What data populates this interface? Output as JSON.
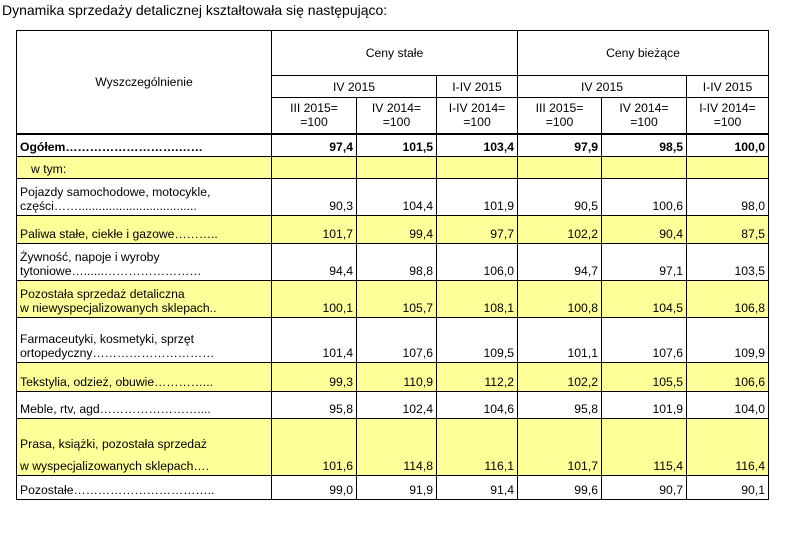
{
  "caption": "Dynamika sprzedaży detalicznej kształtowała się następująco:",
  "header": {
    "row_label": "Wyszczególnienie",
    "group_constant": "Ceny stałe",
    "group_current": "Ceny bieżące",
    "period_iv": "IV 2015",
    "period_i_iv": "I-IV 2015",
    "base_iii": [
      "III 2015=",
      "=100"
    ],
    "base_iv": [
      "IV 2014=",
      "=100"
    ],
    "base_i_iv": [
      "I-IV 2014=",
      "=100"
    ]
  },
  "rows": [
    {
      "label": [
        "Ogółem……………………….……"
      ],
      "values": [
        "97,4",
        "101,5",
        "103,4",
        "97,9",
        "98,5",
        "100,0"
      ],
      "shade": false,
      "bold": true
    },
    {
      "label": [
        "w tym:"
      ],
      "values": [
        "",
        "",
        "",
        "",
        "",
        ""
      ],
      "shade": true,
      "sub": true
    },
    {
      "label": [
        "Pojazdy samochodowe, motocykle,",
        "części……..................................."
      ],
      "values": [
        "90,3",
        "104,4",
        "101,9",
        "90,5",
        "100,6",
        "98,0"
      ],
      "shade": false
    },
    {
      "label": [
        "Paliwa stałe, ciekłe i gazowe……….."
      ],
      "values": [
        "101,7",
        "99,4",
        "97,7",
        "102,2",
        "90,4",
        "87,5"
      ],
      "shade": true
    },
    {
      "label": [
        "Żywność, napoje i wyroby",
        "tytoniowe…......……………………"
      ],
      "values": [
        "94,4",
        "98,8",
        "106,0",
        "94,7",
        "97,1",
        "103,5"
      ],
      "shade": false
    },
    {
      "label": [
        "Pozostała sprzedaż detaliczna",
        "w niewyspecjalizowanych sklepach.."
      ],
      "values": [
        "100,1",
        "105,7",
        "108,1",
        "100,8",
        "104,5",
        "106,8"
      ],
      "shade": true
    },
    {
      "label": [
        "Farmaceutyki, kosmetyki, sprzęt",
        "ortopedyczny…………………………"
      ],
      "values": [
        "101,4",
        "107,6",
        "109,5",
        "101,1",
        "107,6",
        "109,9"
      ],
      "shade": false
    },
    {
      "label": [
        "Tekstylia, odzież, obuwie…………..."
      ],
      "values": [
        "99,3",
        "110,9",
        "112,2",
        "102,2",
        "105,5",
        "106,6"
      ],
      "shade": true
    },
    {
      "label": [
        "Meble, rtv, agd……………………...."
      ],
      "values": [
        "95,8",
        "102,4",
        "104,6",
        "95,8",
        "101,9",
        "104,0"
      ],
      "shade": false
    },
    {
      "label": [
        "Prasa, książki, pozostała sprzedaż",
        "w wyspecjalizowanych sklepach…."
      ],
      "values": [
        "101,6",
        "114,8",
        "116,1",
        "101,7",
        "115,4",
        "116,4"
      ],
      "shade": true
    },
    {
      "label": [
        "Pozostałe…………………………….."
      ],
      "values": [
        "99,0",
        "91,9",
        "91,4",
        "99,6",
        "90,7",
        "90,1"
      ],
      "shade": false
    }
  ]
}
